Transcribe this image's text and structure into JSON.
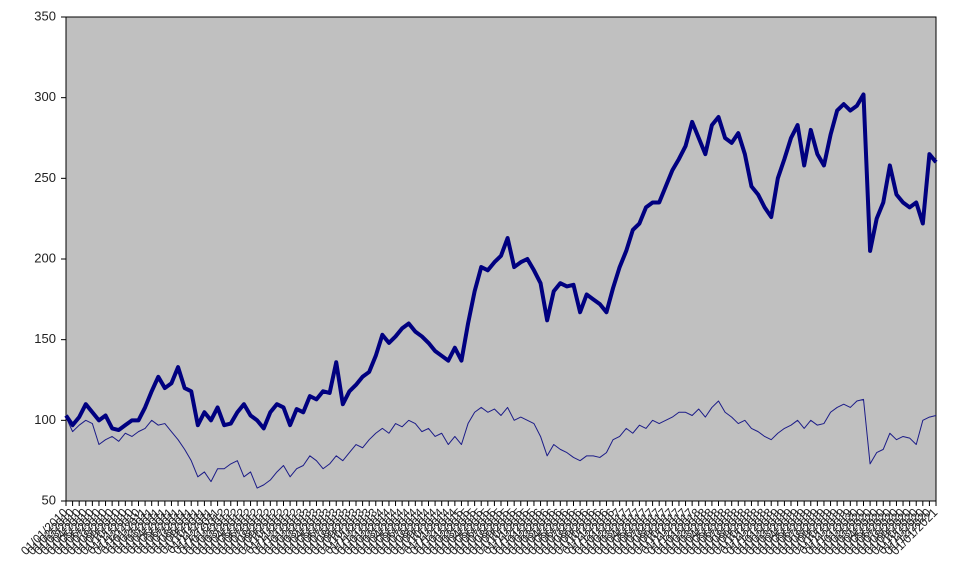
{
  "chart_data": {
    "type": "line",
    "categories": [
      "01/01/2010",
      "01/02/2010",
      "01/03/2010",
      "01/04/2010",
      "01/05/2010",
      "01/06/2010",
      "01/07/2010",
      "01/08/2010",
      "01/09/2010",
      "01/10/2010",
      "01/11/2010",
      "01/12/2010",
      "01/01/2011",
      "01/02/2011",
      "01/03/2011",
      "01/04/2011",
      "01/05/2011",
      "01/06/2011",
      "01/07/2011",
      "01/08/2011",
      "01/09/2011",
      "01/10/2011",
      "01/11/2011",
      "01/12/2011",
      "01/01/2012",
      "01/02/2012",
      "01/03/2012",
      "01/04/2012",
      "01/05/2012",
      "01/06/2012",
      "01/07/2012",
      "01/08/2012",
      "01/09/2012",
      "01/10/2012",
      "01/11/2012",
      "01/12/2012",
      "01/01/2013",
      "01/02/2013",
      "01/03/2013",
      "01/04/2013",
      "01/05/2013",
      "01/06/2013",
      "01/07/2013",
      "01/08/2013",
      "01/09/2013",
      "01/10/2013",
      "01/11/2013",
      "01/12/2013",
      "01/01/2014",
      "01/02/2014",
      "01/03/2014",
      "01/04/2014",
      "01/05/2014",
      "01/06/2014",
      "01/07/2014",
      "01/08/2014",
      "01/09/2014",
      "01/10/2014",
      "01/11/2014",
      "01/12/2014",
      "01/01/2015",
      "01/02/2015",
      "01/03/2015",
      "01/04/2015",
      "01/05/2015",
      "01/06/2015",
      "01/07/2015",
      "01/08/2015",
      "01/09/2015",
      "01/10/2015",
      "01/11/2015",
      "01/12/2015",
      "01/01/2016",
      "01/02/2016",
      "01/03/2016",
      "01/04/2016",
      "01/05/2016",
      "01/06/2016",
      "01/07/2016",
      "01/08/2016",
      "01/09/2016",
      "01/10/2016",
      "01/11/2016",
      "01/12/2016",
      "01/01/2017",
      "01/02/2017",
      "01/03/2017",
      "01/04/2017",
      "01/05/2017",
      "01/06/2017",
      "01/07/2017",
      "01/08/2017",
      "01/09/2017",
      "01/10/2017",
      "01/11/2017",
      "01/12/2017",
      "01/01/2018",
      "01/02/2018",
      "01/03/2018",
      "01/04/2018",
      "01/05/2018",
      "01/06/2018",
      "01/07/2018",
      "01/08/2018",
      "01/09/2018",
      "01/10/2018",
      "01/11/2018",
      "01/12/2018",
      "01/01/2019",
      "01/02/2019",
      "01/03/2019",
      "01/04/2019",
      "01/05/2019",
      "01/06/2019",
      "01/07/2019",
      "01/08/2019",
      "01/09/2019",
      "01/10/2019",
      "01/11/2019",
      "01/12/2019",
      "01/01/2020",
      "01/02/2020",
      "01/03/2020",
      "01/04/2020",
      "01/05/2020",
      "01/06/2020",
      "01/07/2020",
      "01/08/2020",
      "01/09/2020",
      "01/10/2020",
      "01/11/2020",
      "01/12/2020",
      "01/01/2021"
    ],
    "series": [
      {
        "color": "#000080",
        "linewidth": 4,
        "values": [
          103,
          97,
          102,
          110,
          105,
          100,
          103,
          95,
          94,
          97,
          100,
          100,
          108,
          118,
          127,
          120,
          123,
          133,
          120,
          118,
          97,
          105,
          100,
          108,
          97,
          98,
          105,
          110,
          103,
          100,
          95,
          105,
          110,
          108,
          97,
          107,
          105,
          115,
          113,
          118,
          117,
          136,
          110,
          118,
          122,
          127,
          130,
          140,
          153,
          148,
          152,
          157,
          160,
          155,
          152,
          148,
          143,
          140,
          137,
          145,
          137,
          160,
          180,
          195,
          193,
          198,
          202,
          213,
          195,
          198,
          200,
          193,
          185,
          162,
          180,
          185,
          183,
          184,
          167,
          178,
          175,
          172,
          167,
          182,
          195,
          205,
          218,
          222,
          232,
          235,
          235,
          245,
          255,
          262,
          270,
          285,
          275,
          265,
          283,
          288,
          275,
          272,
          278,
          265,
          245,
          240,
          232,
          226,
          250,
          262,
          275,
          283,
          258,
          280,
          265,
          258,
          277,
          292,
          296,
          292,
          295,
          302,
          205,
          225,
          235,
          258,
          240,
          235,
          232,
          235,
          222,
          265,
          260
        ]
      },
      {
        "color": "#1c1c88",
        "linewidth": 1,
        "values": [
          102,
          93,
          97,
          100,
          98,
          85,
          88,
          90,
          87,
          92,
          90,
          93,
          95,
          100,
          97,
          98,
          93,
          88,
          82,
          75,
          65,
          68,
          62,
          70,
          70,
          73,
          75,
          65,
          68,
          58,
          60,
          63,
          68,
          72,
          65,
          70,
          72,
          78,
          75,
          70,
          73,
          78,
          75,
          80,
          85,
          83,
          88,
          92,
          95,
          92,
          98,
          96,
          100,
          98,
          93,
          95,
          90,
          92,
          85,
          90,
          85,
          98,
          105,
          108,
          105,
          107,
          103,
          108,
          100,
          102,
          100,
          98,
          90,
          78,
          85,
          82,
          80,
          77,
          75,
          78,
          78,
          77,
          80,
          88,
          90,
          95,
          92,
          97,
          95,
          100,
          98,
          100,
          102,
          105,
          105,
          103,
          107,
          102,
          108,
          112,
          105,
          102,
          98,
          100,
          95,
          93,
          90,
          88,
          92,
          95,
          97,
          100,
          95,
          100,
          97,
          98,
          105,
          108,
          110,
          108,
          112,
          113,
          73,
          80,
          82,
          92,
          88,
          90,
          89,
          85,
          100,
          102,
          103
        ]
      }
    ],
    "ylim": [
      50,
      350
    ],
    "yticks": [
      50,
      100,
      150,
      200,
      250,
      300,
      350
    ],
    "grid": false,
    "plot_background": "#c0c0c0"
  }
}
